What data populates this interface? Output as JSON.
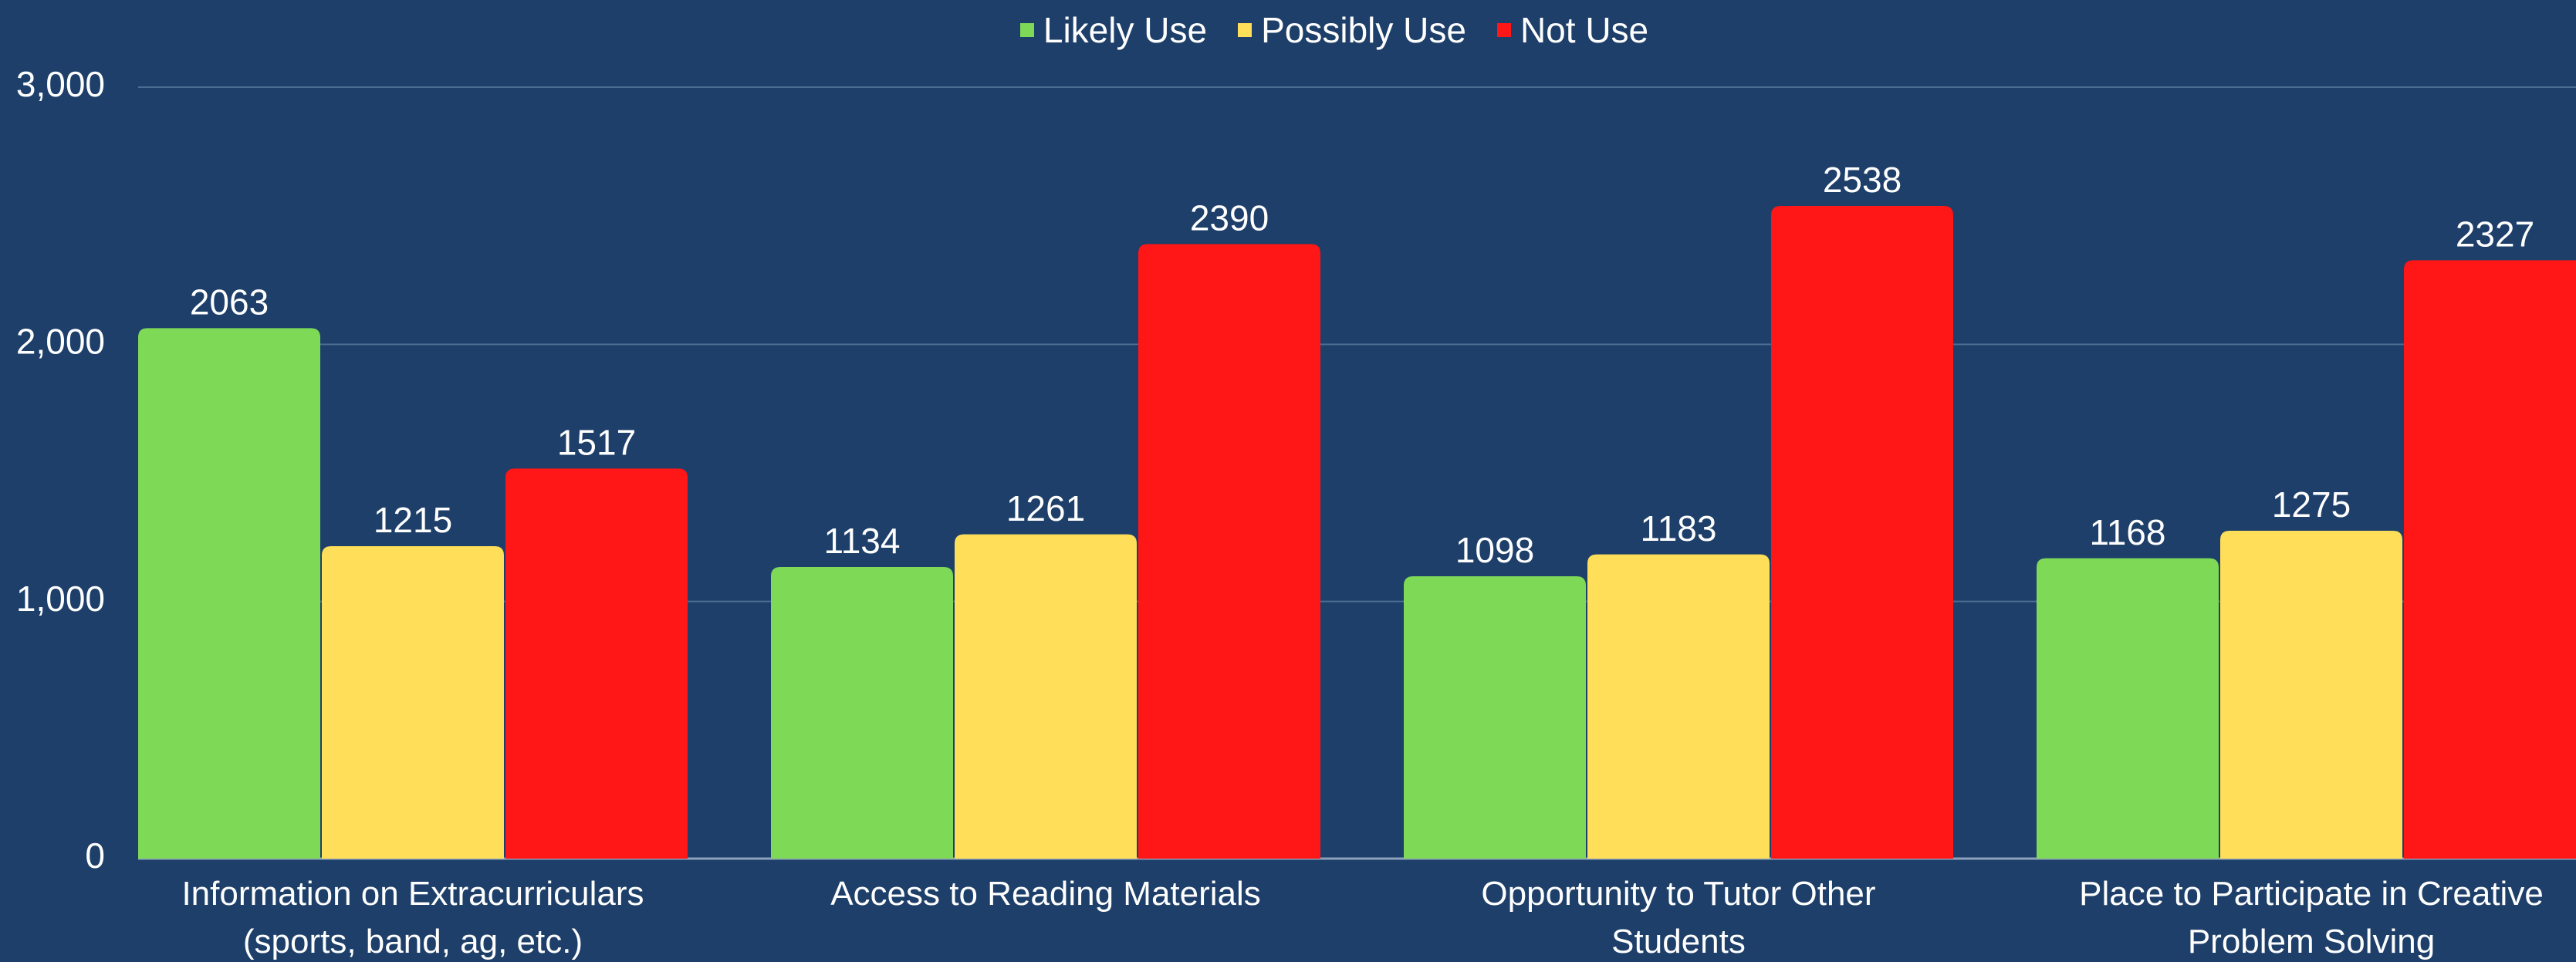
{
  "chart_data": {
    "type": "bar",
    "categories": [
      "Information on Extracurriculars (sports, band, ag, etc.)",
      "Access to Reading Materials",
      "Opportunity to Tutor Other Students",
      "Place to Participate in Creative Problem Solving"
    ],
    "series": [
      {
        "name": "Likely Use",
        "color": "#7ed957",
        "values": [
          2063,
          1134,
          1098,
          1168
        ]
      },
      {
        "name": "Possibly Use",
        "color": "#ffde59",
        "values": [
          1215,
          1261,
          1183,
          1275
        ]
      },
      {
        "name": "Not Use",
        "color": "#ff1616",
        "values": [
          1517,
          2390,
          2538,
          2327
        ]
      }
    ],
    "ylim": [
      0,
      3000
    ],
    "yticks": [
      0,
      {
        "value": 1000,
        "label": "1,000"
      },
      {
        "value": 2000,
        "label": "2,000"
      },
      {
        "value": 3000,
        "label": "3,000"
      }
    ],
    "grid": true,
    "legend": "top"
  }
}
